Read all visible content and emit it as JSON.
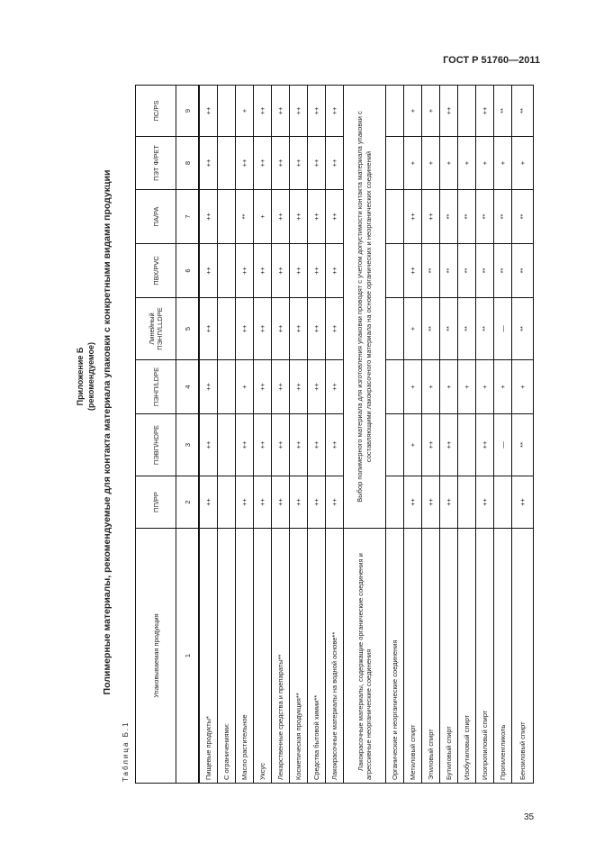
{
  "header": {
    "doc_code": "ГОСТ Р 51760—2011"
  },
  "appendix": {
    "title": "Приложение Б",
    "subtitle": "(рекомендуемое)"
  },
  "title": "Полимерные материалы, рекомендуемые для контакта материала упаковки с конкретными видами продукции",
  "table_label": "Таблица Б.1",
  "table": {
    "columns": [
      "Упаковываемая продукция",
      "ПП/PP",
      "ПЭВП/HDPE",
      "ПЭНП/LDPE",
      "Линейный ПЭНП/LLDPE",
      "ПВХ/PVC",
      "ПА/PA",
      "ПЭТ Ф/PET",
      "ПС/PS"
    ],
    "column_numbers": [
      "1",
      "2",
      "3",
      "4",
      "5",
      "6",
      "7",
      "8",
      "9"
    ],
    "rows": [
      {
        "product": "Пищевые продукты*",
        "values": [
          "++",
          "++",
          "++",
          "++",
          "++",
          "++",
          "++",
          "++"
        ]
      },
      {
        "product": "С ограничениями:",
        "values": [
          "",
          "",
          "",
          "",
          "",
          "",
          "",
          ""
        ]
      },
      {
        "product": "Масло растительное",
        "values": [
          "++",
          "++",
          "+",
          "++",
          "++",
          "**",
          "++",
          "+"
        ]
      },
      {
        "product": "Уксус",
        "values": [
          "++",
          "++",
          "++",
          "++",
          "++",
          "+",
          "++",
          "++"
        ]
      },
      {
        "product": "Лекарственные средства и препараты**",
        "values": [
          "++",
          "++",
          "++",
          "++",
          "++",
          "++",
          "++",
          "++"
        ]
      },
      {
        "product": "Косметическая продукция**",
        "values": [
          "++",
          "++",
          "++",
          "++",
          "++",
          "++",
          "++",
          "++"
        ]
      },
      {
        "product": "Средства бытовой химии**",
        "values": [
          "++",
          "++",
          "++",
          "++",
          "++",
          "++",
          "++",
          "++"
        ]
      },
      {
        "product": "Лакокрасочные материалы на водной основе**",
        "values": [
          "++",
          "++",
          "++",
          "++",
          "++",
          "++",
          "++",
          "++"
        ]
      },
      {
        "product": "Лакокрасочные материалы, содержащие органические соединения и агрессивные неорганические соединения",
        "span_text": "Выбор полимерного материала для изготовления упаковки проводят с учетом допустимости контакта материала упаковки с составляющими лакокрасочного материала на основе органических и неорганических соединений"
      },
      {
        "product": "Органические и неорганические соединения",
        "values": [
          "",
          "",
          "",
          "",
          "",
          "",
          "",
          ""
        ]
      },
      {
        "product": "Метиловый спирт",
        "values": [
          "++",
          "+",
          "+",
          "+",
          "++",
          "++",
          "+",
          "+"
        ]
      },
      {
        "product": "Этиловый спирт",
        "values": [
          "++",
          "++",
          "+",
          "**",
          "**",
          "++",
          "+",
          "+"
        ]
      },
      {
        "product": "Бутиловый спирт",
        "values": [
          "++",
          "++",
          "+",
          "**",
          "**",
          "**",
          "+",
          "++"
        ]
      },
      {
        "product": "Изобутиловый спирт",
        "values": [
          "",
          "",
          "+",
          "**",
          "**",
          "**",
          "+",
          ""
        ]
      },
      {
        "product": "Изопропиловый спирт",
        "values": [
          "++",
          "++",
          "+",
          "**",
          "**",
          "**",
          "+",
          "++"
        ]
      },
      {
        "product": "Пропиленгликоль",
        "values": [
          "",
          "—",
          "+",
          "—",
          "**",
          "**",
          "+",
          "**"
        ]
      },
      {
        "product": "Бензиловый спирт",
        "values": [
          "++",
          "**",
          "+",
          "**",
          "**",
          "**",
          "+",
          "**"
        ]
      }
    ]
  },
  "page_number": "35"
}
